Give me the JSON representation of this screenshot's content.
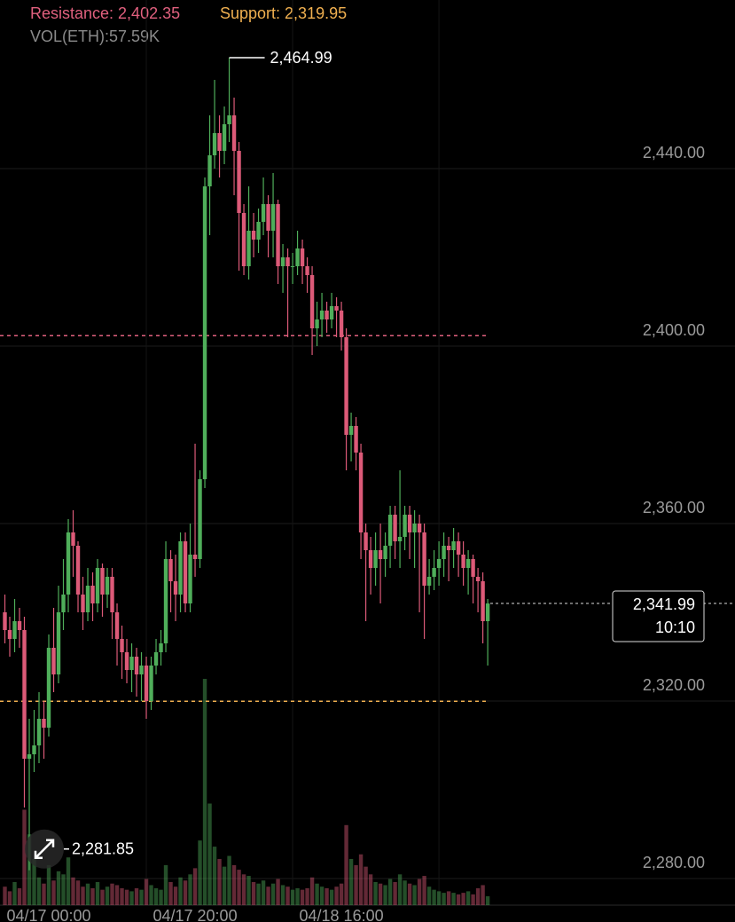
{
  "chart_data": {
    "type": "candlestick",
    "resistance": {
      "value": 2402.35,
      "label": "Resistance: 2,402.35",
      "color": "#e0607e"
    },
    "support": {
      "value": 2319.95,
      "label": "Support: 2,319.95",
      "color": "#f0b050"
    },
    "volume_label": "VOL(ETH):57.59K",
    "up_color": "#4fae5a",
    "down_color": "#dc5a78",
    "open": [
      2340,
      2336,
      2334,
      2338,
      2336,
      2307,
      2308,
      2310,
      2316,
      2314,
      2332,
      2326,
      2340,
      2344,
      2358,
      2355,
      2344,
      2340,
      2346,
      2342,
      2350,
      2344,
      2348,
      2340,
      2334,
      2331,
      2327,
      2330,
      2326,
      2328,
      2320,
      2328,
      2331,
      2333,
      2352,
      2347,
      2344,
      2356,
      2342,
      2353,
      2352,
      2370,
      2436,
      2443,
      2448,
      2444,
      2450,
      2452,
      2444,
      2430,
      2418,
      2426,
      2424,
      2428,
      2432,
      2426,
      2432,
      2418,
      2420,
      2418,
      2418,
      2422,
      2418,
      2416,
      2404,
      2406,
      2408,
      2406,
      2409,
      2408,
      2402,
      2380,
      2382,
      2376,
      2358,
      2354,
      2350,
      2354,
      2352,
      2355,
      2362,
      2356,
      2357,
      2362,
      2358,
      2360,
      2358,
      2346,
      2348,
      2350,
      2352,
      2355,
      2354,
      2356,
      2353,
      2350,
      2352,
      2348,
      2347,
      2338
    ],
    "high": [
      2344,
      2339,
      2343,
      2341,
      2339,
      2316,
      2318,
      2322,
      2320,
      2335,
      2341,
      2346,
      2352,
      2361,
      2363,
      2356,
      2348,
      2350,
      2349,
      2352,
      2351,
      2350,
      2350,
      2342,
      2337,
      2334,
      2333,
      2332,
      2331,
      2330,
      2330,
      2334,
      2336,
      2356,
      2354,
      2353,
      2358,
      2358,
      2360,
      2378,
      2372,
      2438,
      2452,
      2460,
      2452,
      2454,
      2464.99,
      2456,
      2446,
      2432,
      2436,
      2430,
      2431,
      2438,
      2434,
      2439,
      2433,
      2423,
      2422,
      2421,
      2426,
      2424,
      2420,
      2418,
      2410,
      2412,
      2410,
      2412,
      2411,
      2410,
      2404,
      2385,
      2384,
      2378,
      2360,
      2357,
      2358,
      2360,
      2358,
      2364,
      2364,
      2372,
      2364,
      2364,
      2363,
      2362,
      2360,
      2352,
      2354,
      2356,
      2358,
      2357,
      2359,
      2358,
      2356,
      2354,
      2353,
      2350,
      2349,
      2343
    ],
    "low": [
      2333,
      2330,
      2331,
      2332,
      2296,
      2281.85,
      2304,
      2306,
      2307,
      2312,
      2322,
      2324,
      2336,
      2340,
      2348,
      2340,
      2336,
      2338,
      2338,
      2340,
      2339,
      2341,
      2334,
      2328,
      2325,
      2324,
      2322,
      2321,
      2320,
      2316,
      2318,
      2326,
      2328,
      2331,
      2340,
      2338,
      2340,
      2340,
      2340,
      2348,
      2350,
      2368,
      2425,
      2440,
      2438,
      2441,
      2446,
      2434,
      2417,
      2416,
      2415,
      2420,
      2421,
      2425,
      2420,
      2420,
      2414,
      2412,
      2402,
      2414,
      2416,
      2414,
      2412,
      2398,
      2400,
      2402,
      2403,
      2404,
      2402,
      2399,
      2372,
      2374,
      2372,
      2352,
      2338,
      2344,
      2346,
      2342,
      2348,
      2350,
      2352,
      2350,
      2354,
      2352,
      2350,
      2340,
      2334,
      2344,
      2345,
      2346,
      2348,
      2347,
      2350,
      2348,
      2346,
      2344,
      2342,
      2340,
      2333,
      2328
    ],
    "close": [
      2336,
      2334,
      2338,
      2336,
      2307,
      2308,
      2310,
      2316,
      2314,
      2332,
      2326,
      2340,
      2344,
      2358,
      2355,
      2344,
      2340,
      2346,
      2342,
      2350,
      2344,
      2348,
      2340,
      2334,
      2331,
      2327,
      2330,
      2326,
      2328,
      2320,
      2328,
      2331,
      2333,
      2352,
      2347,
      2344,
      2356,
      2342,
      2353,
      2352,
      2370,
      2436,
      2443,
      2448,
      2444,
      2450,
      2452,
      2444,
      2430,
      2418,
      2426,
      2424,
      2428,
      2432,
      2426,
      2432,
      2418,
      2420,
      2418,
      2418,
      2422,
      2418,
      2416,
      2404,
      2406,
      2408,
      2406,
      2409,
      2408,
      2402,
      2380,
      2382,
      2376,
      2358,
      2354,
      2350,
      2354,
      2352,
      2355,
      2362,
      2356,
      2357,
      2362,
      2358,
      2360,
      2358,
      2346,
      2348,
      2350,
      2352,
      2355,
      2354,
      2356,
      2353,
      2350,
      2352,
      2348,
      2347,
      2338,
      2341.99
    ],
    "volume": [
      120,
      90,
      150,
      110,
      620,
      460,
      300,
      180,
      140,
      260,
      160,
      220,
      200,
      310,
      180,
      160,
      120,
      140,
      110,
      150,
      100,
      120,
      140,
      130,
      110,
      100,
      90,
      110,
      100,
      170,
      130,
      110,
      100,
      260,
      150,
      120,
      180,
      160,
      200,
      240,
      420,
      1470,
      660,
      380,
      300,
      250,
      320,
      260,
      230,
      200,
      190,
      150,
      140,
      160,
      120,
      140,
      170,
      130,
      120,
      100,
      110,
      100,
      110,
      180,
      140,
      120,
      110,
      100,
      120,
      140,
      520,
      300,
      260,
      330,
      250,
      200,
      150,
      140,
      130,
      170,
      150,
      200,
      160,
      140,
      130,
      170,
      190,
      120,
      100,
      90,
      80,
      90,
      80,
      70,
      80,
      90,
      70,
      110,
      130,
      57.59
    ],
    "extremes": [
      {
        "value": 2464.99,
        "label": "2,464.99"
      },
      {
        "value": 2281.85,
        "label": "2,281.85"
      }
    ],
    "last_price": {
      "value": 2341.99,
      "label": "2,341.99"
    },
    "countdown": "10:10",
    "xlim": [
      -1,
      149.7
    ],
    "xticks": [
      {
        "value": 9,
        "label": "04/17 00:00"
      },
      {
        "value": 39,
        "label": "04/17 20:00"
      },
      {
        "value": 69,
        "label": "04/18 16:00"
      }
    ],
    "ylim": [
      2274,
      2478
    ],
    "yticks": [
      {
        "value": 2440,
        "label": "2,440.00"
      },
      {
        "value": 2400,
        "label": "2,400.00"
      },
      {
        "value": 2360,
        "label": "2,360.00"
      },
      {
        "value": 2320,
        "label": "2,320.00"
      },
      {
        "value": 2280,
        "label": "2,280.00"
      }
    ],
    "grid": true
  }
}
